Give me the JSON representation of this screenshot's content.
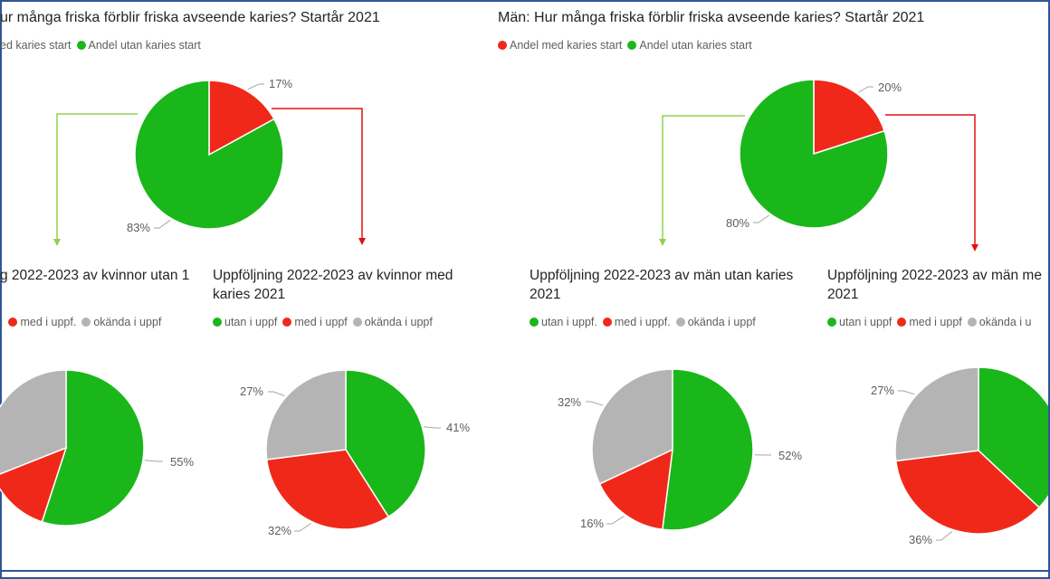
{
  "colors": {
    "green": "#1ab71a",
    "red": "#f0281a",
    "gray": "#b4b4b4",
    "arrow_green": "#92d050",
    "arrow_red": "#e01010"
  },
  "chart_data": [
    {
      "type": "pie",
      "title": "ur många friska förblir friska avseende karies? Startår 2021",
      "legend": [
        "ed karies start",
        "Andel utan karies start"
      ],
      "slices": [
        {
          "label": "ed karies start",
          "value": 17,
          "text": "17%",
          "color": "#f0281a"
        },
        {
          "label": "Andel utan karies start",
          "value": 83,
          "text": "83%",
          "color": "#1ab71a"
        }
      ]
    },
    {
      "type": "pie",
      "title": "Män: Hur många friska förblir friska avseende karies? Startår 2021",
      "legend": [
        "Andel med karies start",
        "Andel utan karies start"
      ],
      "slices": [
        {
          "label": "Andel med karies start",
          "value": 20,
          "text": "20%",
          "color": "#f0281a"
        },
        {
          "label": "Andel utan karies start",
          "value": 80,
          "text": "80%",
          "color": "#1ab71a"
        }
      ]
    },
    {
      "type": "pie",
      "title": "g 2022-2023 av kvinnor utan 1",
      "legend": [
        ".",
        "med i uppf.",
        "okända i uppf"
      ],
      "slices": [
        {
          "label": ".",
          "value": 55,
          "text": "55%",
          "color": "#1ab71a"
        },
        {
          "label": "med i uppf.",
          "value": 14,
          "text": "",
          "color": "#f0281a"
        },
        {
          "label": "okända i uppf",
          "value": 31,
          "text": "",
          "color": "#b4b4b4"
        }
      ]
    },
    {
      "type": "pie",
      "title": "Uppföljning 2022-2023 av kvinnor med karies 2021",
      "legend": [
        "utan i uppf",
        "med i uppf",
        "okända i uppf"
      ],
      "slices": [
        {
          "label": "utan i uppf",
          "value": 41,
          "text": "41%",
          "color": "#1ab71a"
        },
        {
          "label": "med i uppf",
          "value": 32,
          "text": "32%",
          "color": "#f0281a"
        },
        {
          "label": "okända i uppf",
          "value": 27,
          "text": "27%",
          "color": "#b4b4b4"
        }
      ]
    },
    {
      "type": "pie",
      "title": "Uppföljning 2022-2023 av män utan karies 2021",
      "legend": [
        "utan i uppf.",
        "med i uppf.",
        "okända i uppf"
      ],
      "slices": [
        {
          "label": "utan i uppf.",
          "value": 52,
          "text": "52%",
          "color": "#1ab71a"
        },
        {
          "label": "med i uppf.",
          "value": 16,
          "text": "16%",
          "color": "#f0281a"
        },
        {
          "label": "okända i uppf",
          "value": 32,
          "text": "32%",
          "color": "#b4b4b4"
        }
      ]
    },
    {
      "type": "pie",
      "title": "Uppföljning 2022-2023 av män me 2021",
      "legend": [
        "utan i uppf",
        "med i uppf",
        "okända i u"
      ],
      "slices": [
        {
          "label": "utan i uppf",
          "value": 37,
          "text": "",
          "color": "#1ab71a"
        },
        {
          "label": "med i uppf",
          "value": 36,
          "text": "36%",
          "color": "#f0281a"
        },
        {
          "label": "okända i u",
          "value": 27,
          "text": "27%",
          "color": "#b4b4b4"
        }
      ]
    }
  ]
}
